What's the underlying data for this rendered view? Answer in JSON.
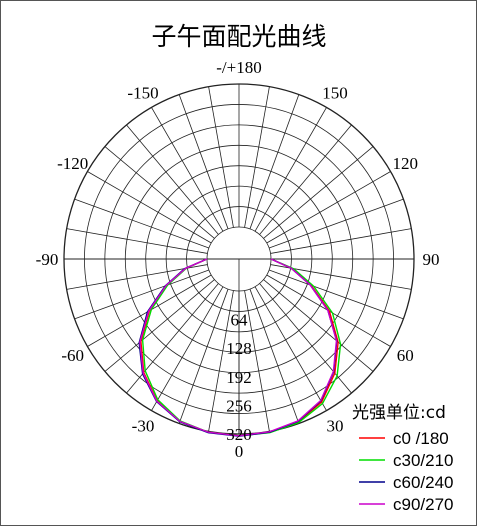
{
  "chart_data": {
    "type": "polar",
    "title": "子午面配光曲线",
    "angle_labels": [
      "-/+180",
      "150",
      "120",
      "90",
      "60",
      "30",
      "0",
      "-30",
      "-60",
      "-90",
      "-120",
      "-150"
    ],
    "radial_ticks": [
      64,
      128,
      192,
      256,
      320
    ],
    "radial_tick_labels": [
      "64",
      "128",
      "192",
      "256",
      "320"
    ],
    "rmax": 320,
    "grid": true,
    "legend_title": "光强单位:cd",
    "legend_position": "bottom-right",
    "series": [
      {
        "name": "c0 /180",
        "color": "#ff0000",
        "angles": [
          -90,
          -80,
          -70,
          -60,
          -50,
          -40,
          -30,
          -20,
          -10,
          0,
          10,
          20,
          30,
          40,
          50,
          60,
          70,
          80,
          90
        ],
        "values": [
          0,
          50,
          100,
          160,
          215,
          260,
          295,
          315,
          322,
          324,
          322,
          316,
          298,
          262,
          218,
          162,
          100,
          48,
          0
        ]
      },
      {
        "name": "c30/210",
        "color": "#00dd00",
        "angles": [
          -90,
          -80,
          -70,
          -60,
          -50,
          -40,
          -30,
          -20,
          -10,
          0,
          10,
          20,
          30,
          40,
          50,
          60,
          70,
          80,
          90
        ],
        "values": [
          0,
          48,
          98,
          155,
          210,
          255,
          292,
          314,
          322,
          324,
          323,
          318,
          302,
          270,
          225,
          170,
          106,
          52,
          0
        ]
      },
      {
        "name": "c60/240",
        "color": "#00008b",
        "angles": [
          -90,
          -80,
          -70,
          -60,
          -50,
          -40,
          -30,
          -20,
          -10,
          0,
          10,
          20,
          30,
          40,
          50,
          60,
          70,
          80,
          90
        ],
        "values": [
          0,
          52,
          104,
          165,
          220,
          264,
          297,
          316,
          323,
          325,
          322,
          315,
          295,
          258,
          214,
          158,
          98,
          47,
          0
        ]
      },
      {
        "name": "c90/270",
        "color": "#cc00cc",
        "angles": [
          -90,
          -80,
          -70,
          -60,
          -50,
          -40,
          -30,
          -20,
          -10,
          0,
          10,
          20,
          30,
          40,
          50,
          60,
          70,
          80,
          90
        ],
        "values": [
          0,
          50,
          102,
          162,
          218,
          262,
          296,
          315,
          322,
          324,
          321,
          314,
          294,
          257,
          213,
          158,
          98,
          47,
          0
        ]
      }
    ]
  }
}
